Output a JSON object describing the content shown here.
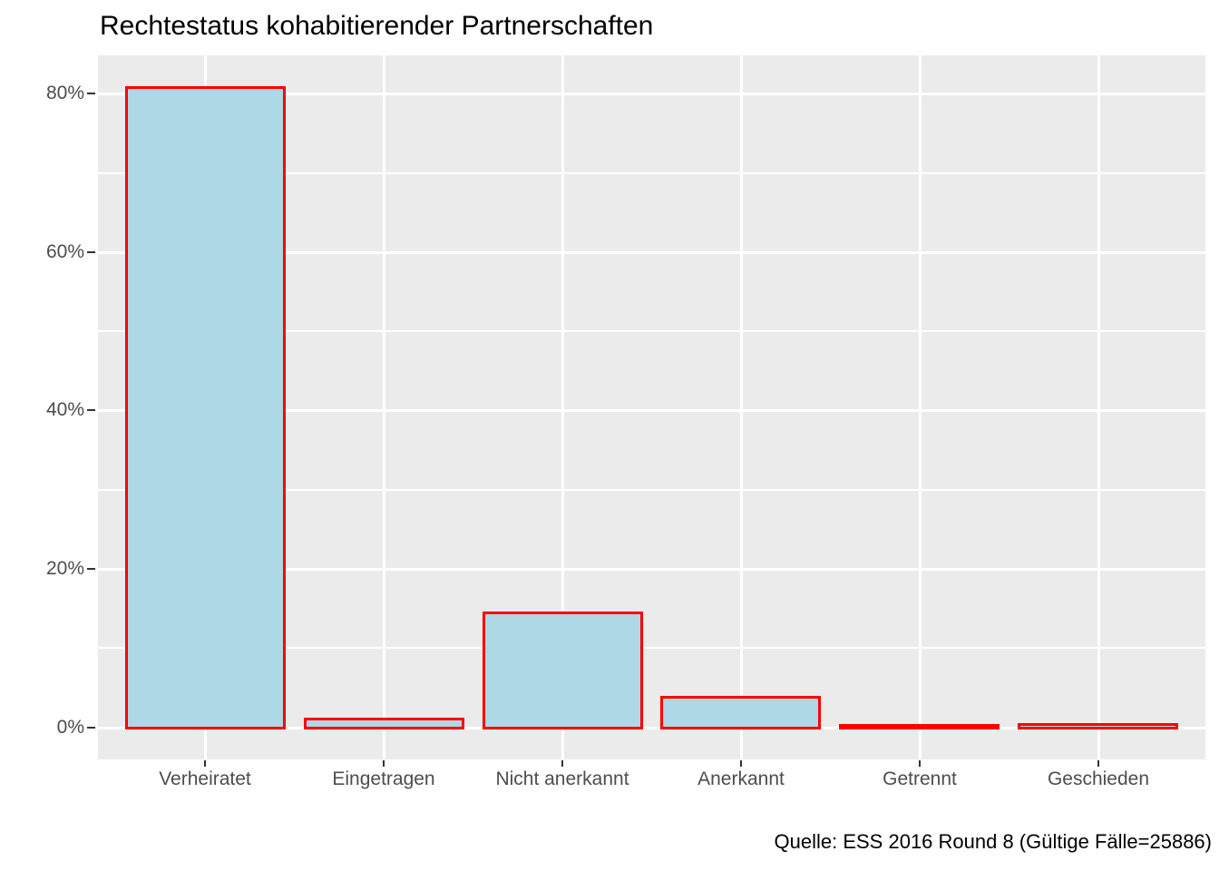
{
  "chart_data": {
    "type": "bar",
    "title": "Rechtestatus kohabitierender Partnerschaften",
    "caption": "Quelle: ESS 2016 Round 8 (Gültige Fälle=25886)",
    "categories": [
      "Verheiratet",
      "Eingetragen",
      "Nicht anerkannt",
      "Anerkannt",
      "Getrennt",
      "Geschieden"
    ],
    "values": [
      80.7,
      1.0,
      14.4,
      3.8,
      0.2,
      0.3
    ],
    "value_unit": "percent",
    "xlabel": "",
    "ylabel": "",
    "ylim": [
      -4.04,
      84.84
    ],
    "y_major_ticks": [
      {
        "value": 0,
        "label": "0%"
      },
      {
        "value": 20,
        "label": "20%"
      },
      {
        "value": 40,
        "label": "40%"
      },
      {
        "value": 60,
        "label": "60%"
      },
      {
        "value": 80,
        "label": "80%"
      }
    ],
    "y_minor_ticks": [
      10,
      30,
      50,
      70
    ],
    "grid": "on",
    "legend": "none",
    "colors": {
      "bar_fill": "#ADD8E6",
      "bar_border": "#FF0000",
      "panel_background": "#EBEBEB",
      "gridline": "#FFFFFF",
      "axis_text": "#4D4D4D",
      "tick_mark": "#333333",
      "title_text": "#000000",
      "caption_text": "#000000",
      "page_background": "#FFFFFF"
    }
  }
}
